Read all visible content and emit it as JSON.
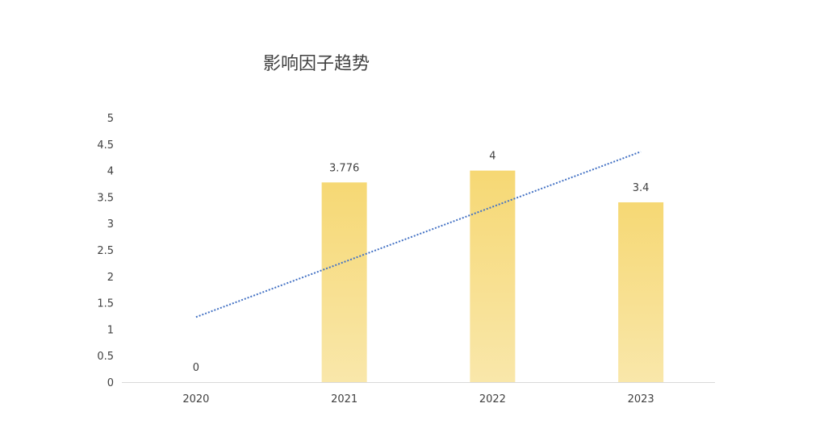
{
  "chart_data": {
    "type": "bar",
    "title": "影响因子趋势",
    "xlabel": "",
    "ylabel": "",
    "categories": [
      "2020",
      "2021",
      "2022",
      "2023"
    ],
    "series": [
      {
        "values": [
          0,
          3.776,
          4,
          3.4
        ],
        "data_labels": [
          "0",
          "3.776",
          "4",
          "3.4"
        ]
      }
    ],
    "ylim": [
      0,
      5
    ],
    "yticks": [
      "0",
      "0.5",
      "1",
      "1.5",
      "2",
      "2.5",
      "3",
      "3.5",
      "4",
      "4.5",
      "5"
    ],
    "trendline": {
      "type": "linear",
      "style": "dotted"
    },
    "grid": false,
    "legend": "none",
    "colors": {
      "bar_top": "#f6d874",
      "bar_bottom": "#f9e7aa",
      "trendline": "#4472c4",
      "axis": "#d9d9d9",
      "text": "#404040"
    }
  }
}
